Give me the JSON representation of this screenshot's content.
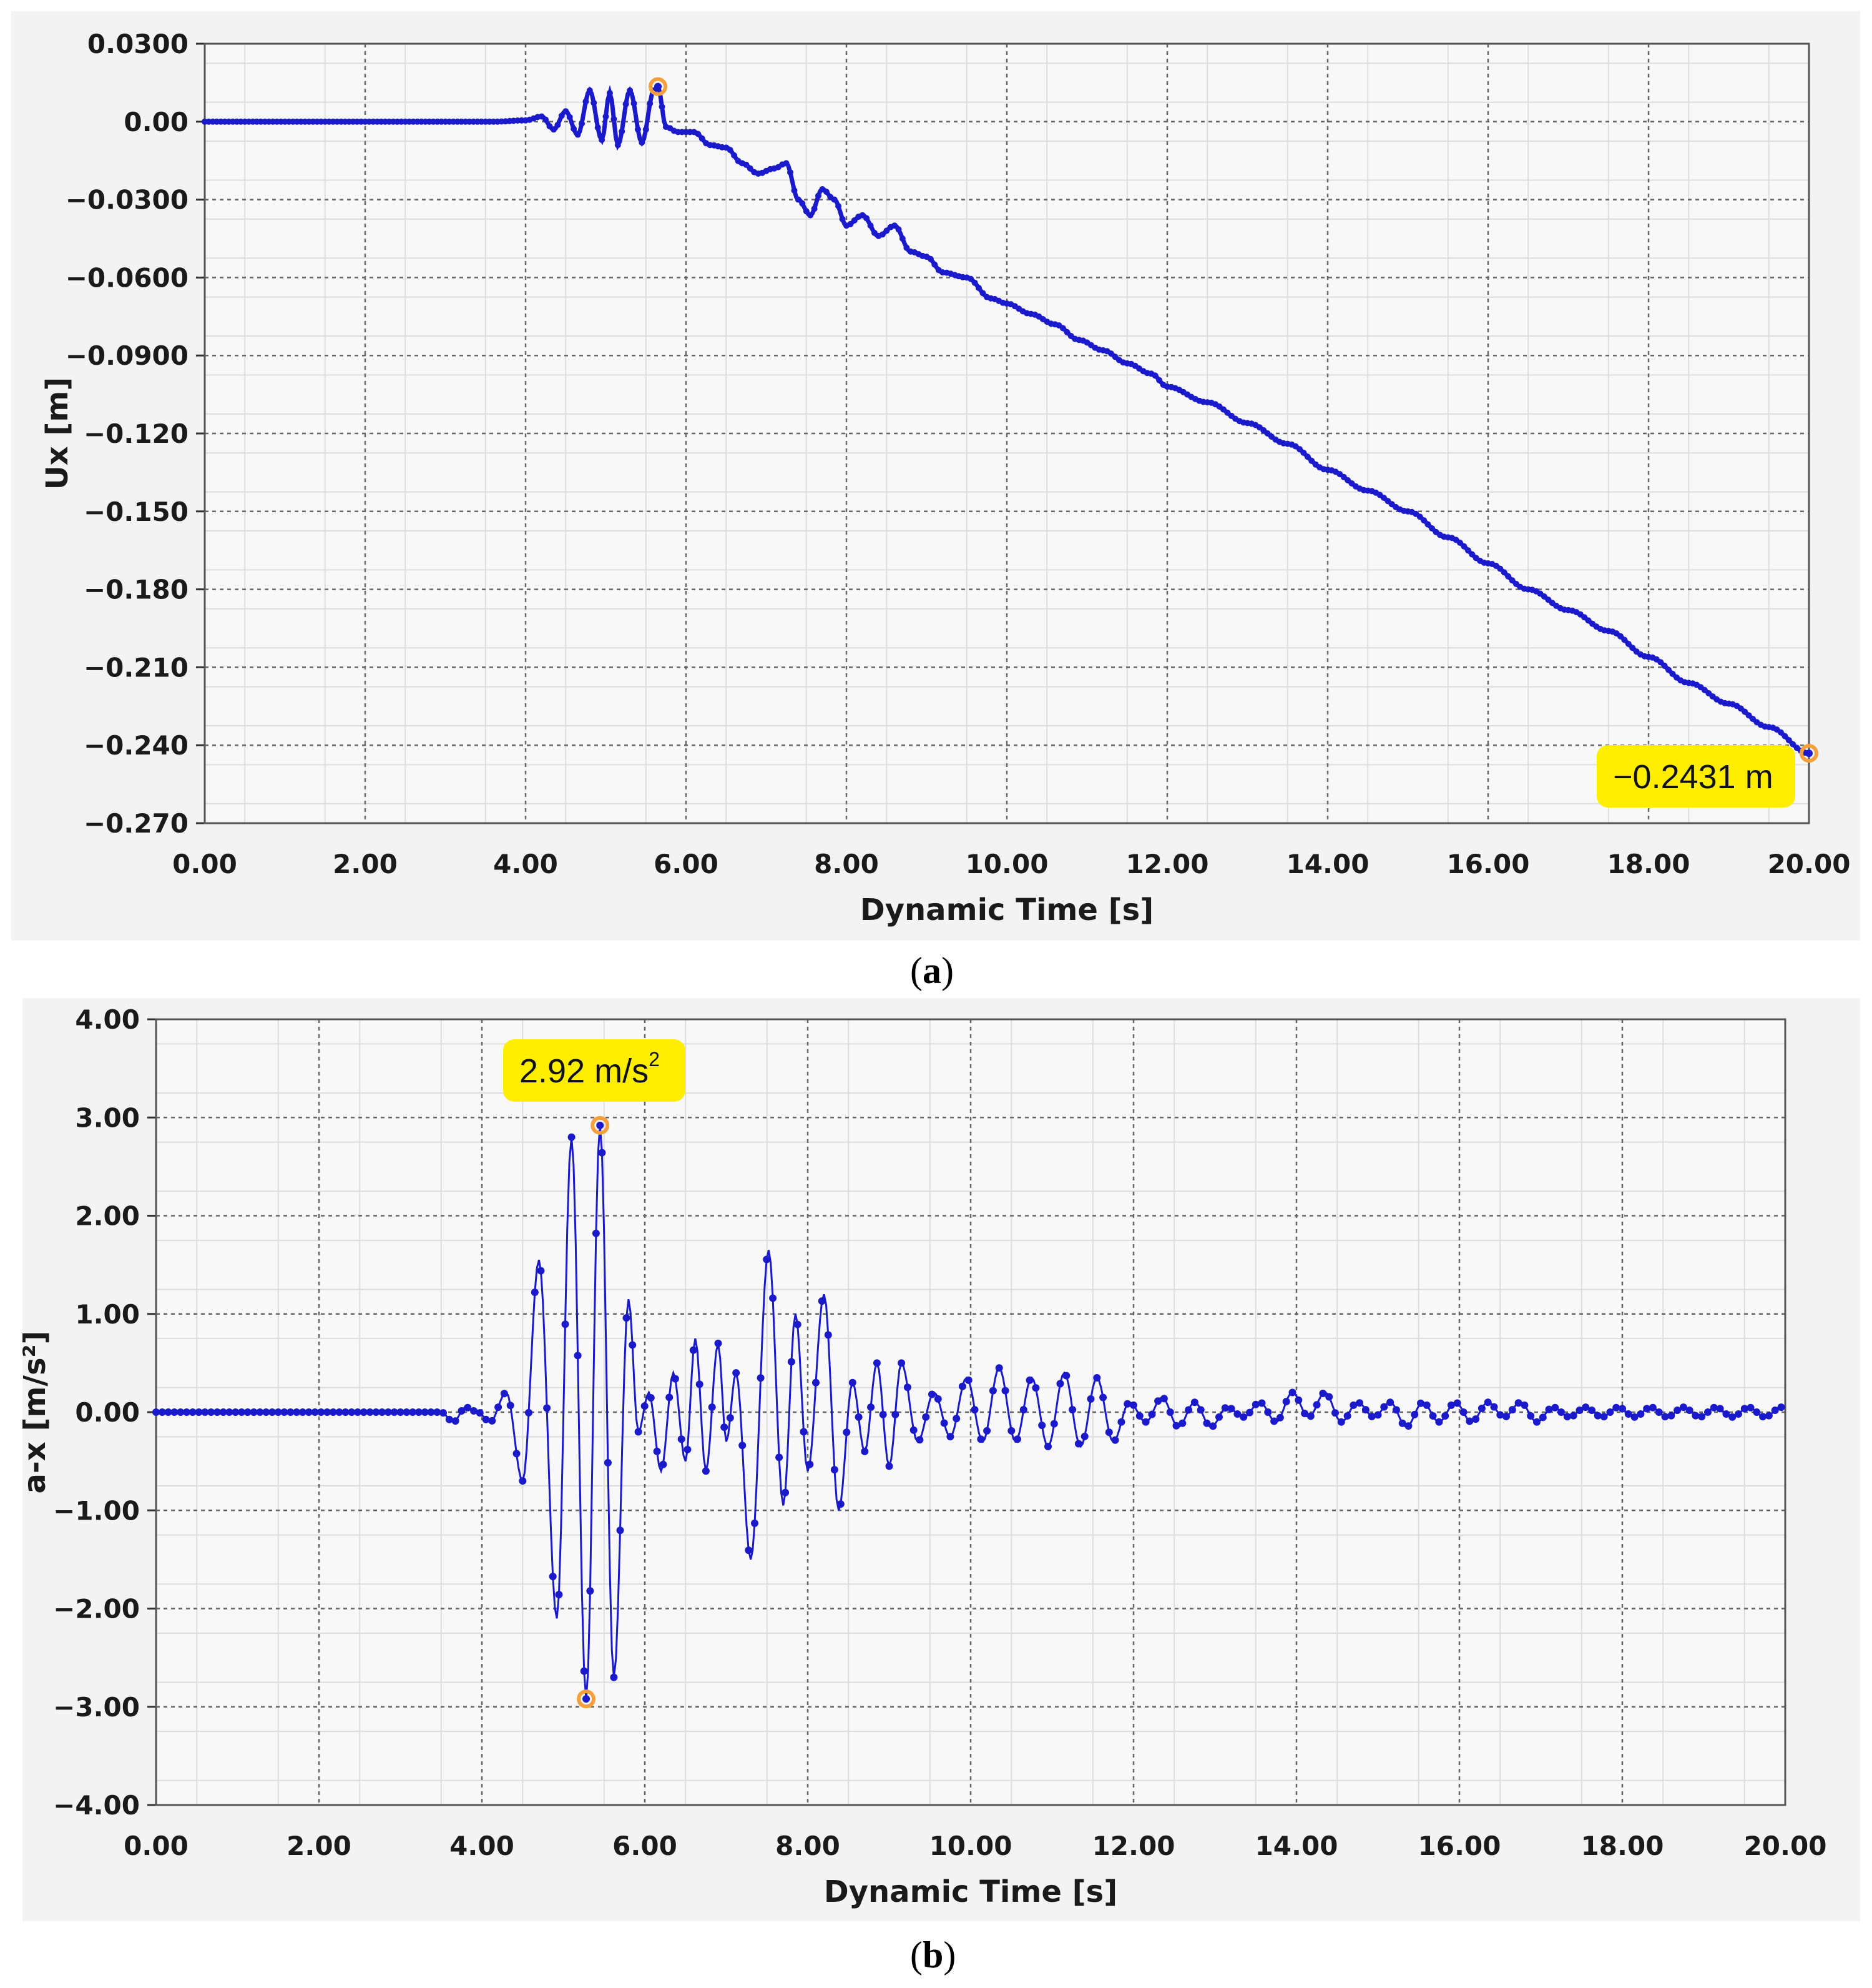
{
  "captions": {
    "a": "a",
    "b": "b"
  },
  "chart_data": [
    {
      "type": "line",
      "xlabel": "Dynamic Time [s]",
      "ylabel": "Ux [m]",
      "xlim": [
        0,
        20
      ],
      "ylim": [
        -0.27,
        0.03
      ],
      "xticks": [
        "0.00",
        "2.00",
        "4.00",
        "6.00",
        "8.00",
        "10.00",
        "12.00",
        "14.00",
        "16.00",
        "18.00",
        "20.00"
      ],
      "yticks": [
        "0.0300",
        "0.00",
        "−0.0300",
        "−0.0600",
        "−0.0900",
        "−0.120",
        "−0.150",
        "−0.180",
        "−0.210",
        "−0.240",
        "−0.270"
      ],
      "grid": true,
      "line_color": "#1a1acc",
      "marker_color": "#f5a03c",
      "callout_color": "#ffee00",
      "annotation": {
        "text": "−0.2431 m",
        "x": 20.0,
        "y": -0.2431
      },
      "highlight_points": [
        {
          "x": 5.65,
          "y": 0.0135
        },
        {
          "x": 20.0,
          "y": -0.2431
        }
      ],
      "series": [
        {
          "x": [
            0,
            1,
            2,
            3,
            3.6,
            4.0,
            4.2,
            4.35,
            4.5,
            4.65,
            4.8,
            4.95,
            5.05,
            5.15,
            5.3,
            5.45,
            5.6,
            5.65,
            5.75,
            5.9,
            6.1,
            6.3,
            6.5,
            6.7,
            6.9,
            7.1,
            7.25,
            7.4,
            7.55,
            7.7,
            7.85,
            8.0,
            8.2,
            8.4,
            8.6,
            8.8,
            9.0,
            9.2,
            9.5,
            9.8,
            10.0,
            10.3,
            10.6,
            10.9,
            11.2,
            11.5,
            11.8,
            12.0,
            12.5,
            13.0,
            13.5,
            14.0,
            14.5,
            15.0,
            15.5,
            16.0,
            16.5,
            17.0,
            17.5,
            18.0,
            18.5,
            19.0,
            19.5,
            20.0
          ],
          "y": [
            0,
            0,
            0,
            0,
            0,
            0.0005,
            0.002,
            -0.003,
            0.004,
            -0.005,
            0.012,
            -0.007,
            0.011,
            -0.009,
            0.012,
            -0.008,
            0.012,
            0.0135,
            -0.002,
            -0.004,
            -0.004,
            -0.009,
            -0.01,
            -0.016,
            -0.02,
            -0.018,
            -0.016,
            -0.03,
            -0.036,
            -0.026,
            -0.03,
            -0.04,
            -0.036,
            -0.044,
            -0.04,
            -0.05,
            -0.052,
            -0.058,
            -0.06,
            -0.068,
            -0.07,
            -0.074,
            -0.078,
            -0.084,
            -0.088,
            -0.093,
            -0.097,
            -0.102,
            -0.108,
            -0.116,
            -0.124,
            -0.134,
            -0.142,
            -0.15,
            -0.16,
            -0.17,
            -0.18,
            -0.188,
            -0.196,
            -0.206,
            -0.216,
            -0.224,
            -0.233,
            -0.2431
          ]
        }
      ]
    },
    {
      "type": "line",
      "xlabel": "Dynamic Time [s]",
      "ylabel": "a-x  [m/s²]",
      "xlim": [
        0,
        20
      ],
      "ylim": [
        -4,
        4
      ],
      "xticks": [
        "0.00",
        "2.00",
        "4.00",
        "6.00",
        "8.00",
        "10.00",
        "12.00",
        "14.00",
        "16.00",
        "18.00",
        "20.00"
      ],
      "yticks": [
        "4.00",
        "3.00",
        "2.00",
        "1.00",
        "0.00",
        "−1.00",
        "−2.00",
        "−3.00",
        "−4.00"
      ],
      "grid": true,
      "line_color": "#1a1acc",
      "marker_color": "#f5a03c",
      "callout_color": "#ffee00",
      "annotation": {
        "text": "2.92 m/s",
        "superscript": "2",
        "x": 5.45,
        "y": 2.92
      },
      "highlight_points": [
        {
          "x": 5.45,
          "y": 2.92
        },
        {
          "x": 5.28,
          "y": -2.92
        }
      ],
      "series": [
        {
          "x": [
            0,
            1,
            2,
            3,
            3.5,
            3.65,
            3.8,
            3.95,
            4.1,
            4.3,
            4.5,
            4.7,
            4.92,
            5.1,
            5.28,
            5.45,
            5.62,
            5.8,
            5.92,
            6.05,
            6.2,
            6.35,
            6.5,
            6.62,
            6.75,
            6.9,
            7.0,
            7.12,
            7.3,
            7.52,
            7.7,
            7.85,
            8.0,
            8.2,
            8.38,
            8.55,
            8.7,
            8.85,
            9.0,
            9.15,
            9.35,
            9.55,
            9.75,
            9.95,
            10.15,
            10.35,
            10.55,
            10.75,
            10.95,
            11.15,
            11.35,
            11.55,
            11.75,
            11.95,
            12.15,
            12.35,
            12.55,
            12.75,
            12.95,
            13.15,
            13.35,
            13.55,
            13.75,
            13.95,
            14.15,
            14.35,
            14.55,
            14.75,
            14.95,
            15.15,
            15.35,
            15.55,
            15.75,
            15.95,
            16.15,
            16.35,
            16.55,
            16.75,
            16.95,
            17.15,
            17.35,
            17.55,
            17.75,
            17.95,
            18.15,
            18.35,
            18.55,
            18.75,
            18.95,
            19.15,
            19.35,
            19.55,
            19.75,
            19.95,
            20.0
          ],
          "y": [
            0,
            0,
            0,
            0,
            0.0,
            -0.1,
            0.05,
            0.0,
            -0.1,
            0.2,
            -0.7,
            1.55,
            -2.1,
            2.8,
            -2.92,
            2.92,
            -2.7,
            1.15,
            -0.2,
            0.2,
            -0.6,
            0.4,
            -0.5,
            0.75,
            -0.6,
            0.7,
            -0.3,
            0.4,
            -1.5,
            1.65,
            -0.95,
            1.0,
            -0.6,
            1.2,
            -1.0,
            0.3,
            -0.4,
            0.5,
            -0.55,
            0.5,
            -0.3,
            0.2,
            -0.25,
            0.35,
            -0.3,
            0.45,
            -0.3,
            0.35,
            -0.35,
            0.4,
            -0.35,
            0.35,
            -0.3,
            0.1,
            -0.1,
            0.15,
            -0.15,
            0.1,
            -0.15,
            0.05,
            -0.05,
            0.1,
            -0.1,
            0.2,
            -0.05,
            0.2,
            -0.1,
            0.1,
            -0.05,
            0.1,
            -0.15,
            0.1,
            -0.1,
            0.1,
            -0.1,
            0.1,
            -0.05,
            0.1,
            -0.1,
            0.05,
            -0.05,
            0.05,
            -0.05,
            0.05,
            -0.05,
            0.05,
            -0.05,
            0.05,
            -0.05,
            0.05,
            -0.05,
            0.05,
            -0.05,
            0.05,
            0.05
          ]
        }
      ]
    }
  ]
}
